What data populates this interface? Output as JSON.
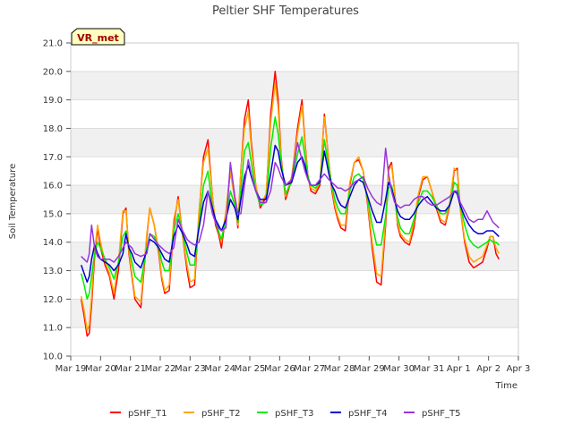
{
  "chart_data": {
    "type": "line",
    "title": "Peltier SHF Temperatures",
    "xlabel": "Time",
    "ylabel": "Soil Temperature",
    "badge": "VR_met",
    "ylim": [
      10.0,
      21.0
    ],
    "yticks": [
      "10.0",
      "11.0",
      "12.0",
      "13.0",
      "14.0",
      "15.0",
      "16.0",
      "17.0",
      "18.0",
      "19.0",
      "20.0",
      "21.0"
    ],
    "xlim": [
      0,
      15
    ],
    "xticks": [
      "Mar 19",
      "Mar 20",
      "Mar 21",
      "Mar 22",
      "Mar 23",
      "Mar 24",
      "Mar 25",
      "Mar 26",
      "Mar 27",
      "Mar 28",
      "Mar 29",
      "Mar 30",
      "Mar 31",
      "Apr 1",
      "Apr 2",
      "Apr 3"
    ],
    "grid": true,
    "legend_position": "bottom",
    "series": [
      {
        "name": "pSHF_T1",
        "color": "#ff0000",
        "x": [
          0.35,
          0.45,
          0.55,
          0.62,
          0.7,
          0.8,
          0.9,
          1.0,
          1.15,
          1.3,
          1.45,
          1.6,
          1.75,
          1.85,
          1.95,
          2.05,
          2.15,
          2.35,
          2.55,
          2.65,
          2.8,
          2.95,
          3.05,
          3.15,
          3.3,
          3.45,
          3.6,
          3.75,
          3.9,
          4.0,
          4.15,
          4.3,
          4.45,
          4.6,
          4.75,
          4.85,
          4.95,
          5.05,
          5.2,
          5.35,
          5.5,
          5.6,
          5.7,
          5.82,
          5.95,
          6.05,
          6.2,
          6.35,
          6.55,
          6.7,
          6.85,
          6.95,
          7.05,
          7.2,
          7.4,
          7.6,
          7.75,
          7.85,
          7.95,
          8.05,
          8.2,
          8.35,
          8.5,
          8.65,
          8.75,
          8.85,
          8.95,
          9.05,
          9.2,
          9.35,
          9.5,
          9.65,
          9.8,
          9.95,
          10.1,
          10.25,
          10.4,
          10.55,
          10.65,
          10.75,
          10.85,
          10.95,
          11.05,
          11.2,
          11.35,
          11.5,
          11.65,
          11.8,
          11.95,
          12.1,
          12.25,
          12.4,
          12.55,
          12.7,
          12.85,
          12.95,
          13.05,
          13.2,
          13.35,
          13.5,
          13.65,
          13.8,
          13.95,
          14.05,
          14.15,
          14.25,
          14.35
        ],
        "y": [
          12.0,
          11.4,
          10.7,
          10.8,
          11.8,
          13.5,
          14.5,
          13.8,
          13.2,
          12.8,
          12.0,
          13.0,
          15.0,
          15.2,
          13.6,
          12.8,
          12.0,
          11.7,
          14.2,
          15.2,
          14.6,
          13.6,
          12.7,
          12.2,
          12.3,
          14.6,
          15.6,
          14.2,
          13.0,
          12.4,
          12.5,
          15.0,
          17.0,
          17.6,
          15.6,
          14.6,
          14.3,
          13.8,
          15.0,
          16.5,
          15.5,
          14.5,
          16.5,
          18.3,
          19.0,
          17.5,
          16.0,
          15.2,
          15.6,
          18.5,
          20.0,
          19.0,
          17.0,
          15.5,
          16.2,
          18.0,
          19.0,
          17.5,
          16.3,
          15.8,
          15.7,
          16.0,
          18.5,
          16.8,
          15.8,
          15.2,
          14.8,
          14.5,
          14.4,
          16.0,
          16.8,
          16.9,
          16.5,
          15.3,
          13.8,
          12.6,
          12.5,
          14.6,
          16.6,
          16.8,
          15.8,
          14.6,
          14.2,
          14.0,
          13.9,
          14.5,
          15.6,
          16.2,
          16.3,
          15.8,
          15.2,
          14.7,
          14.6,
          15.3,
          16.5,
          16.6,
          15.2,
          14.0,
          13.3,
          13.1,
          13.2,
          13.3,
          13.8,
          14.2,
          14.2,
          13.6,
          13.4
        ]
      },
      {
        "name": "pSHF_T2",
        "color": "#ffa500",
        "x": [
          0.35,
          0.45,
          0.55,
          0.62,
          0.7,
          0.8,
          0.9,
          1.0,
          1.15,
          1.3,
          1.45,
          1.6,
          1.75,
          1.85,
          1.95,
          2.05,
          2.15,
          2.35,
          2.55,
          2.65,
          2.8,
          2.95,
          3.05,
          3.15,
          3.3,
          3.45,
          3.6,
          3.75,
          3.9,
          4.0,
          4.15,
          4.3,
          4.45,
          4.6,
          4.75,
          4.85,
          4.95,
          5.05,
          5.2,
          5.35,
          5.5,
          5.6,
          5.7,
          5.82,
          5.95,
          6.05,
          6.2,
          6.35,
          6.55,
          6.7,
          6.85,
          6.95,
          7.05,
          7.2,
          7.4,
          7.6,
          7.75,
          7.85,
          7.95,
          8.05,
          8.2,
          8.35,
          8.5,
          8.65,
          8.75,
          8.85,
          8.95,
          9.05,
          9.2,
          9.35,
          9.5,
          9.65,
          9.8,
          9.95,
          10.1,
          10.25,
          10.4,
          10.55,
          10.65,
          10.75,
          10.85,
          10.95,
          11.05,
          11.2,
          11.35,
          11.5,
          11.65,
          11.8,
          11.95,
          12.1,
          12.25,
          12.4,
          12.55,
          12.7,
          12.85,
          12.95,
          13.05,
          13.2,
          13.35,
          13.5,
          13.65,
          13.8,
          13.95,
          14.05,
          14.15,
          14.25,
          14.35
        ],
        "y": [
          12.1,
          11.6,
          10.9,
          11.1,
          12.1,
          13.7,
          14.6,
          14.0,
          13.3,
          12.9,
          12.2,
          13.3,
          15.1,
          15.1,
          13.7,
          12.9,
          12.1,
          11.9,
          14.3,
          15.2,
          14.6,
          13.7,
          12.8,
          12.3,
          12.5,
          14.8,
          15.5,
          14.2,
          13.2,
          12.6,
          12.7,
          15.1,
          16.8,
          17.3,
          15.6,
          14.7,
          14.4,
          14.0,
          15.1,
          16.5,
          15.5,
          14.6,
          16.5,
          18.0,
          18.6,
          17.3,
          16.0,
          15.3,
          15.7,
          18.2,
          19.6,
          18.7,
          16.9,
          15.6,
          16.3,
          17.8,
          18.8,
          17.4,
          16.3,
          15.9,
          15.8,
          16.1,
          18.4,
          16.8,
          15.9,
          15.3,
          14.9,
          14.6,
          14.6,
          16.1,
          16.8,
          17.0,
          16.5,
          15.4,
          14.0,
          12.9,
          12.8,
          14.8,
          16.5,
          16.7,
          15.8,
          14.7,
          14.3,
          14.1,
          14.0,
          14.7,
          15.7,
          16.3,
          16.3,
          15.8,
          15.3,
          14.8,
          14.7,
          15.4,
          16.6,
          16.5,
          15.2,
          14.1,
          13.5,
          13.3,
          13.4,
          13.5,
          13.9,
          14.2,
          14.2,
          13.8,
          13.6
        ]
      },
      {
        "name": "pSHF_T3",
        "color": "#00ee00",
        "x": [
          0.35,
          0.45,
          0.55,
          0.62,
          0.7,
          0.8,
          0.9,
          1.0,
          1.15,
          1.3,
          1.45,
          1.6,
          1.75,
          1.85,
          1.95,
          2.05,
          2.15,
          2.35,
          2.55,
          2.65,
          2.8,
          2.95,
          3.05,
          3.15,
          3.3,
          3.45,
          3.6,
          3.75,
          3.9,
          4.0,
          4.15,
          4.3,
          4.45,
          4.6,
          4.75,
          4.85,
          4.95,
          5.05,
          5.2,
          5.35,
          5.5,
          5.6,
          5.7,
          5.82,
          5.95,
          6.05,
          6.2,
          6.35,
          6.55,
          6.7,
          6.85,
          6.95,
          7.05,
          7.2,
          7.4,
          7.6,
          7.75,
          7.85,
          7.95,
          8.05,
          8.2,
          8.35,
          8.5,
          8.65,
          8.75,
          8.85,
          8.95,
          9.05,
          9.2,
          9.35,
          9.5,
          9.65,
          9.8,
          9.95,
          10.1,
          10.25,
          10.4,
          10.55,
          10.65,
          10.75,
          10.85,
          10.95,
          11.05,
          11.2,
          11.35,
          11.5,
          11.65,
          11.8,
          11.95,
          12.1,
          12.25,
          12.4,
          12.55,
          12.7,
          12.85,
          12.95,
          13.05,
          13.2,
          13.35,
          13.5,
          13.65,
          13.8,
          13.95,
          14.05,
          14.15,
          14.25,
          14.35
        ],
        "y": [
          12.9,
          12.5,
          12.0,
          12.2,
          12.8,
          13.6,
          14.0,
          13.8,
          13.4,
          13.1,
          12.7,
          13.3,
          14.2,
          14.4,
          13.8,
          13.3,
          12.8,
          12.6,
          13.8,
          14.3,
          14.2,
          13.8,
          13.3,
          13.0,
          13.0,
          14.4,
          15.0,
          14.3,
          13.6,
          13.2,
          13.2,
          14.6,
          16.0,
          16.5,
          15.2,
          14.7,
          14.4,
          14.1,
          14.8,
          15.8,
          15.3,
          14.7,
          15.8,
          17.2,
          17.5,
          16.8,
          15.8,
          15.3,
          15.4,
          17.3,
          18.4,
          17.8,
          16.8,
          15.7,
          16.1,
          17.1,
          17.7,
          17.0,
          16.3,
          16.0,
          15.9,
          16.1,
          17.6,
          16.6,
          16.0,
          15.5,
          15.2,
          15.0,
          15.0,
          15.8,
          16.3,
          16.4,
          16.2,
          15.5,
          14.6,
          13.9,
          13.9,
          14.9,
          15.9,
          16.0,
          15.5,
          14.9,
          14.5,
          14.3,
          14.3,
          14.8,
          15.4,
          15.8,
          15.8,
          15.6,
          15.3,
          15.0,
          15.0,
          15.3,
          16.1,
          16.0,
          15.3,
          14.6,
          14.1,
          13.9,
          13.8,
          13.9,
          14.0,
          14.1,
          14.0,
          14.0,
          13.9
        ]
      },
      {
        "name": "pSHF_T4",
        "color": "#0000cc",
        "x": [
          0.35,
          0.45,
          0.55,
          0.62,
          0.7,
          0.8,
          0.9,
          1.0,
          1.15,
          1.3,
          1.45,
          1.6,
          1.75,
          1.85,
          1.95,
          2.05,
          2.15,
          2.35,
          2.55,
          2.65,
          2.8,
          2.95,
          3.05,
          3.15,
          3.3,
          3.45,
          3.6,
          3.75,
          3.9,
          4.0,
          4.15,
          4.3,
          4.45,
          4.6,
          4.75,
          4.85,
          4.95,
          5.05,
          5.2,
          5.35,
          5.5,
          5.6,
          5.7,
          5.82,
          5.95,
          6.05,
          6.2,
          6.35,
          6.55,
          6.7,
          6.85,
          6.95,
          7.05,
          7.2,
          7.4,
          7.6,
          7.75,
          7.85,
          7.95,
          8.05,
          8.2,
          8.35,
          8.5,
          8.65,
          8.75,
          8.85,
          8.95,
          9.05,
          9.2,
          9.35,
          9.5,
          9.65,
          9.8,
          9.95,
          10.1,
          10.25,
          10.4,
          10.55,
          10.65,
          10.75,
          10.85,
          10.95,
          11.05,
          11.2,
          11.35,
          11.5,
          11.65,
          11.8,
          11.95,
          12.1,
          12.25,
          12.4,
          12.55,
          12.7,
          12.85,
          12.95,
          13.05,
          13.2,
          13.35,
          13.5,
          13.65,
          13.8,
          13.95,
          14.05,
          14.15,
          14.25,
          14.35
        ],
        "y": [
          13.2,
          12.9,
          12.6,
          12.8,
          13.4,
          13.9,
          13.6,
          13.4,
          13.3,
          13.2,
          13.0,
          13.2,
          13.6,
          14.3,
          13.8,
          13.6,
          13.3,
          13.1,
          13.7,
          14.1,
          14.0,
          13.8,
          13.6,
          13.4,
          13.3,
          14.2,
          14.6,
          14.3,
          13.9,
          13.6,
          13.5,
          14.5,
          15.4,
          15.8,
          15.2,
          14.8,
          14.6,
          14.4,
          14.8,
          15.5,
          15.2,
          14.8,
          15.5,
          16.3,
          16.7,
          16.3,
          15.8,
          15.5,
          15.5,
          16.4,
          17.4,
          17.2,
          16.6,
          16.0,
          16.1,
          16.8,
          17.0,
          16.7,
          16.2,
          16.0,
          16.0,
          16.1,
          17.2,
          16.4,
          16.0,
          15.8,
          15.5,
          15.3,
          15.2,
          15.6,
          16.0,
          16.2,
          16.1,
          15.6,
          15.1,
          14.7,
          14.7,
          15.5,
          16.1,
          15.9,
          15.5,
          15.1,
          14.9,
          14.8,
          14.8,
          15.0,
          15.3,
          15.5,
          15.6,
          15.4,
          15.2,
          15.1,
          15.1,
          15.3,
          15.8,
          15.7,
          15.3,
          14.9,
          14.6,
          14.4,
          14.3,
          14.3,
          14.4,
          14.4,
          14.4,
          14.3,
          14.2
        ]
      },
      {
        "name": "pSHF_T5",
        "color": "#9933dd",
        "x": [
          0.35,
          0.45,
          0.55,
          0.62,
          0.7,
          0.8,
          0.9,
          1.0,
          1.15,
          1.3,
          1.45,
          1.6,
          1.75,
          1.85,
          1.95,
          2.05,
          2.15,
          2.35,
          2.55,
          2.65,
          2.8,
          2.95,
          3.05,
          3.15,
          3.3,
          3.45,
          3.6,
          3.75,
          3.9,
          4.0,
          4.15,
          4.3,
          4.45,
          4.6,
          4.75,
          4.85,
          4.95,
          5.05,
          5.2,
          5.35,
          5.5,
          5.6,
          5.7,
          5.82,
          5.95,
          6.05,
          6.2,
          6.35,
          6.55,
          6.7,
          6.85,
          6.95,
          7.05,
          7.2,
          7.4,
          7.6,
          7.75,
          7.85,
          7.95,
          8.05,
          8.2,
          8.35,
          8.5,
          8.65,
          8.75,
          8.85,
          8.95,
          9.05,
          9.2,
          9.35,
          9.5,
          9.65,
          9.8,
          9.95,
          10.1,
          10.25,
          10.4,
          10.55,
          10.65,
          10.75,
          10.85,
          10.95,
          11.05,
          11.2,
          11.35,
          11.5,
          11.65,
          11.8,
          11.95,
          12.1,
          12.25,
          12.4,
          12.55,
          12.7,
          12.85,
          12.95,
          13.05,
          13.2,
          13.35,
          13.5,
          13.65,
          13.8,
          13.95,
          14.05,
          14.15,
          14.25,
          14.35
        ],
        "y": [
          13.5,
          13.4,
          13.3,
          13.6,
          14.6,
          13.8,
          13.5,
          13.4,
          13.4,
          13.4,
          13.3,
          13.5,
          13.8,
          14.0,
          13.9,
          13.8,
          13.6,
          13.5,
          13.6,
          14.3,
          14.1,
          13.9,
          13.8,
          13.7,
          13.6,
          13.8,
          14.8,
          14.4,
          14.1,
          14.0,
          13.9,
          14.0,
          14.6,
          15.8,
          15.0,
          14.7,
          14.5,
          14.4,
          14.5,
          16.8,
          15.6,
          15.0,
          15.0,
          16.0,
          16.9,
          16.4,
          15.8,
          15.4,
          15.4,
          15.8,
          16.8,
          16.6,
          16.3,
          16.0,
          16.2,
          17.5,
          16.9,
          16.5,
          16.2,
          16.0,
          16.0,
          16.2,
          16.4,
          16.2,
          16.1,
          16.0,
          15.9,
          15.9,
          15.8,
          15.9,
          16.1,
          16.2,
          16.3,
          15.9,
          15.6,
          15.4,
          15.3,
          17.3,
          16.4,
          15.8,
          15.4,
          15.3,
          15.2,
          15.3,
          15.3,
          15.5,
          15.6,
          15.6,
          15.4,
          15.3,
          15.3,
          15.4,
          15.5,
          15.6,
          15.8,
          15.8,
          15.4,
          15.1,
          14.8,
          14.7,
          14.8,
          14.8,
          15.1,
          14.9,
          14.7,
          14.6,
          14.5
        ]
      }
    ]
  }
}
